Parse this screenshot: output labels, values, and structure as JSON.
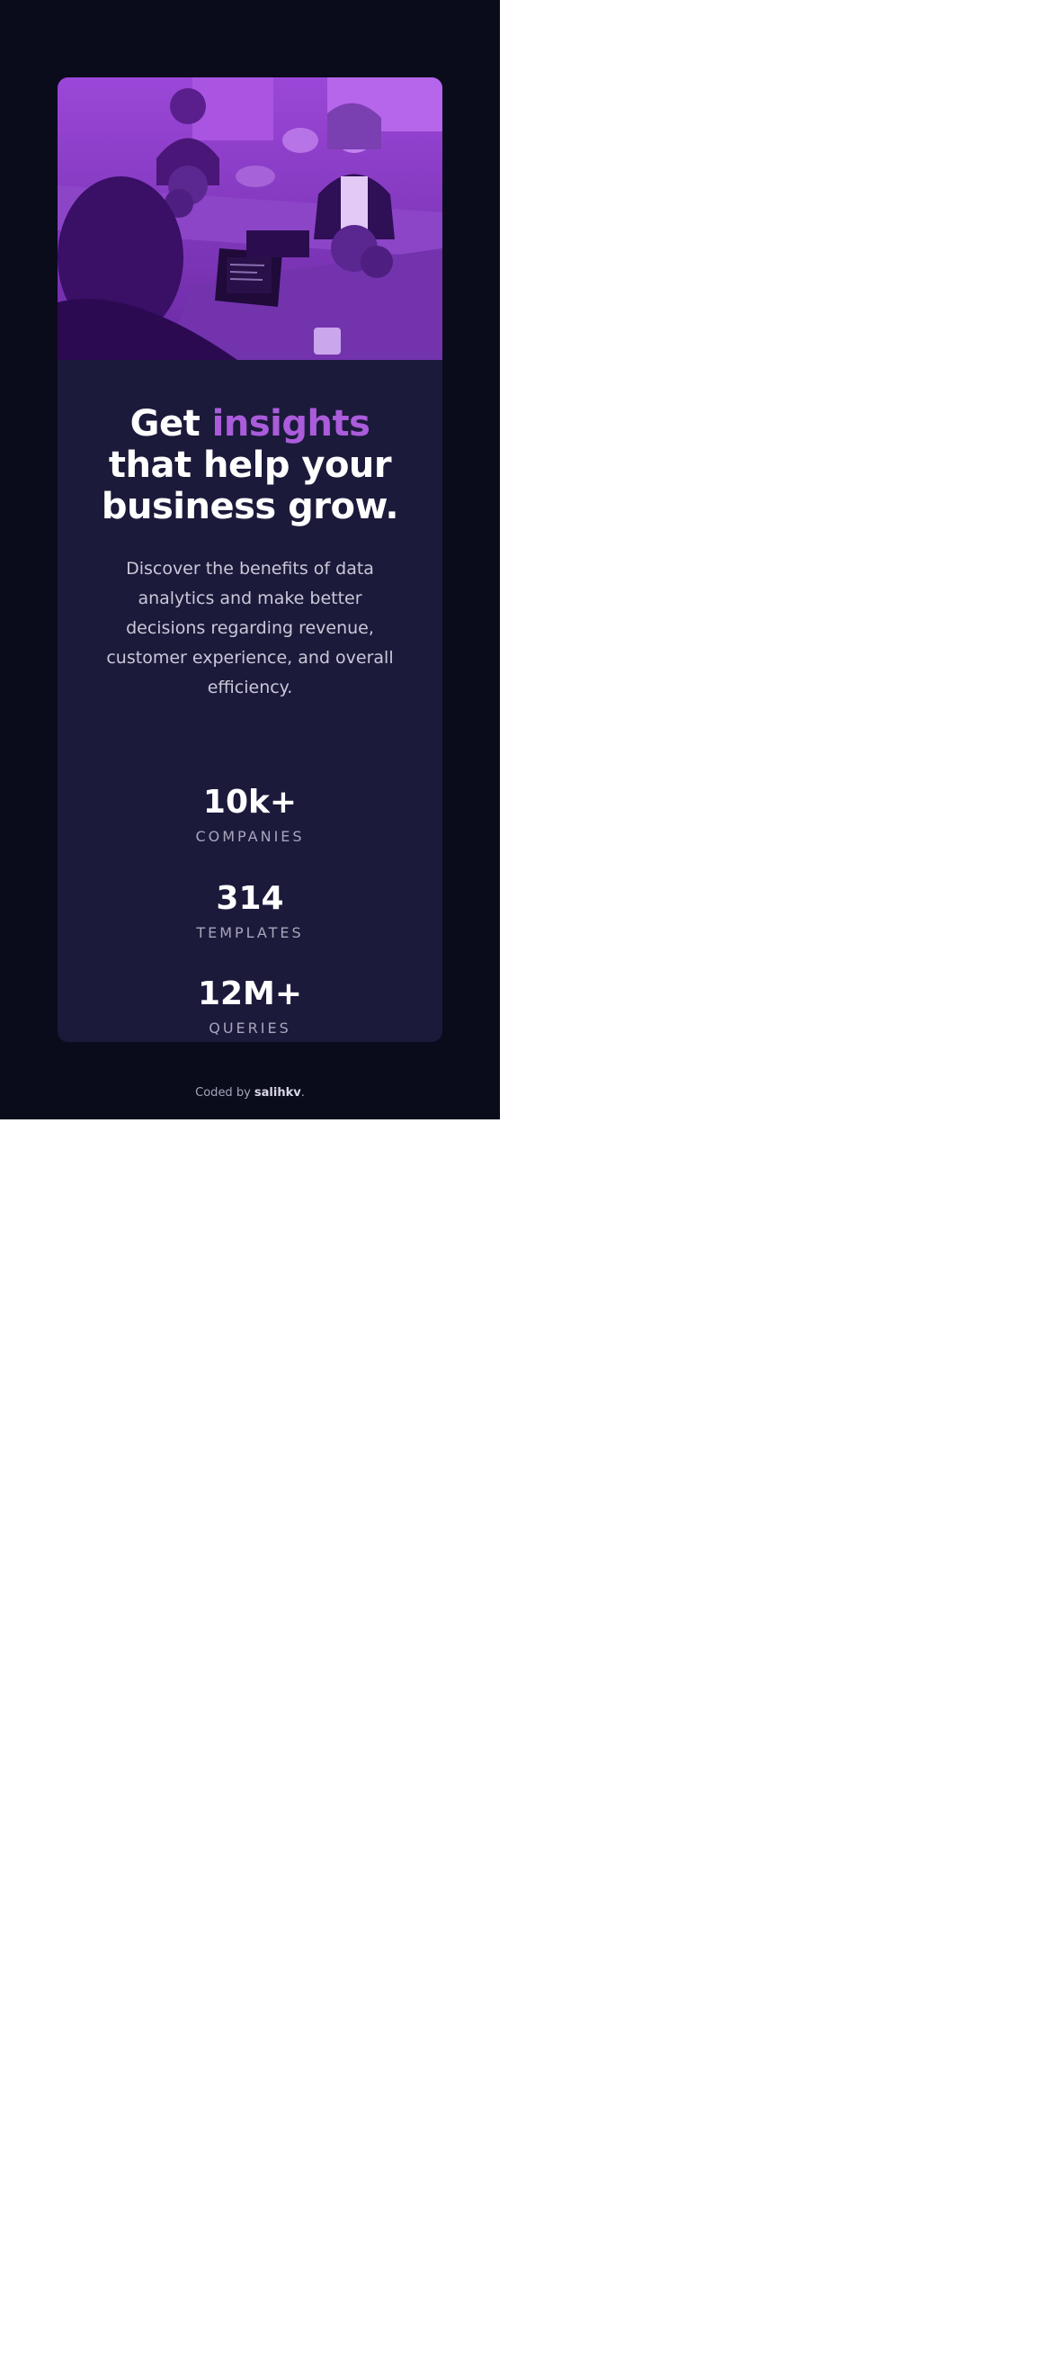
{
  "colors": {
    "page_background": "#0a0c1c",
    "card_background": "#1c1a3a",
    "accent": "#aa5cdb",
    "image_tint": "#8c3ccf"
  },
  "hero": {
    "image": "purple-tinted-office-photo"
  },
  "headline": {
    "before": "Get ",
    "accent": "insights",
    "after": " that help your business grow."
  },
  "description": "Discover the benefits of data analytics and make better decisions regarding revenue, customer experience, and overall efficiency.",
  "stats": [
    {
      "value": "10k+",
      "label": "COMPANIES"
    },
    {
      "value": "314",
      "label": "TEMPLATES"
    },
    {
      "value": "12M+",
      "label": "QUERIES"
    }
  ],
  "footer": {
    "prefix": "Coded by ",
    "author": "salihkv",
    "suffix": "."
  }
}
